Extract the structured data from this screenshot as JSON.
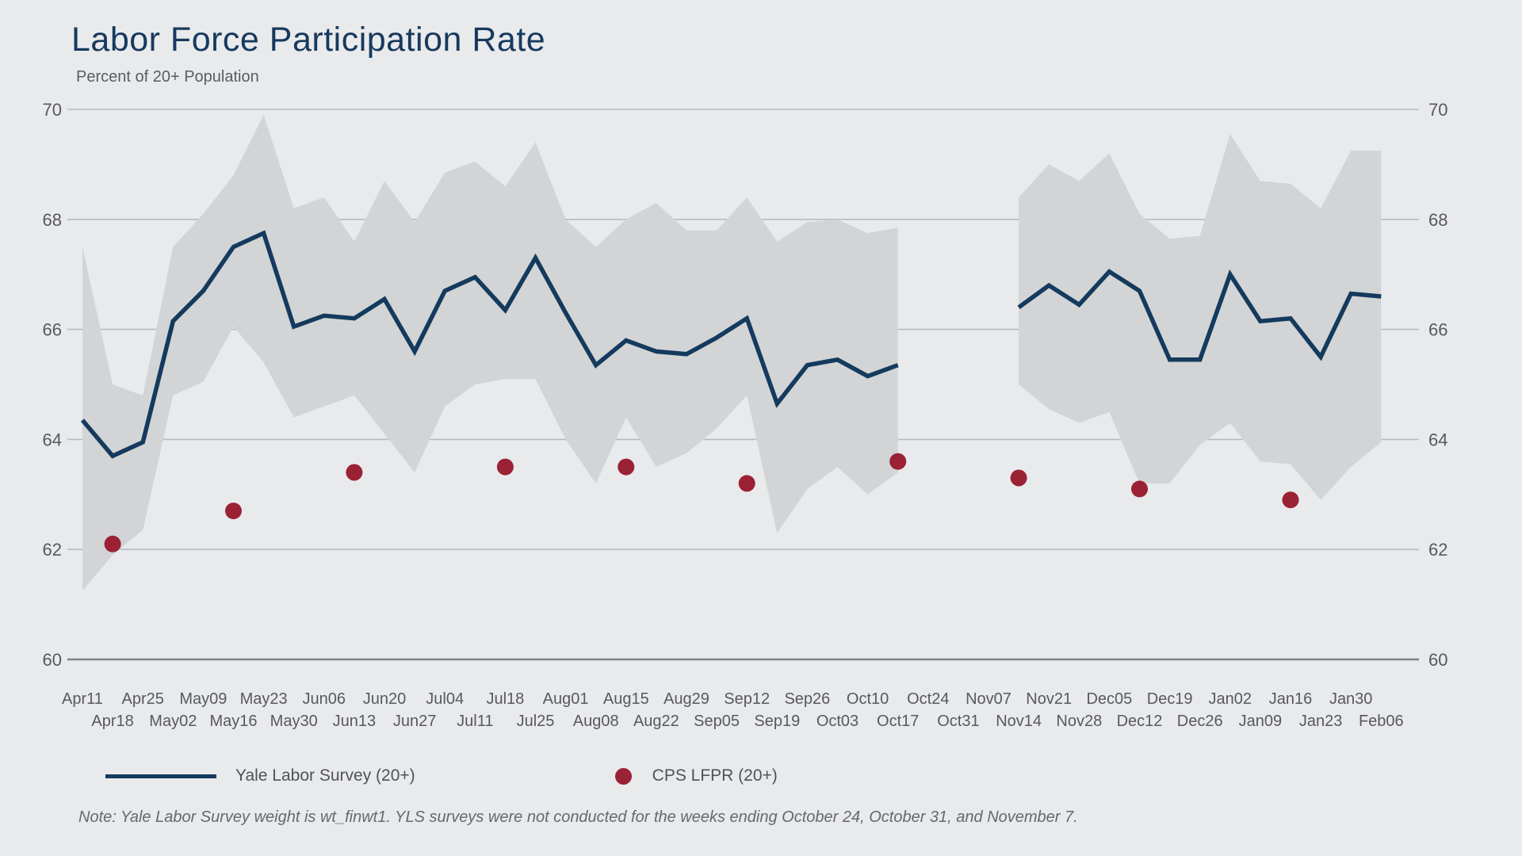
{
  "title": "Labor Force Participation Rate",
  "subtitle": "Percent of 20+ Population",
  "legend": {
    "series1_label": "Yale Labor Survey (20+)",
    "series2_label": "CPS LFPR (20+)"
  },
  "note": "Note: Yale Labor Survey weight is wt_finwt1. YLS surveys were not conducted for the weeks ending October 24, October 31, and November 7.",
  "colors": {
    "background": "#e9eaec",
    "line": "#143a5d",
    "band": "#d2d4d6",
    "dot": "#9b2135",
    "grid": "#b9babd",
    "axis": "#7e8184",
    "tick_text": "#58595b",
    "title_text": "#17395e"
  },
  "chart_data": {
    "type": "line",
    "title": "Labor Force Participation Rate",
    "ylabel": "Percent of 20+ Population",
    "ylim": [
      60,
      70
    ],
    "yticks": [
      60,
      62,
      64,
      66,
      68,
      70
    ],
    "grid": true,
    "legend_position": "bottom",
    "x_tick_labels": [
      "Apr11",
      "Apr18",
      "Apr25",
      "May02",
      "May09",
      "May16",
      "May23",
      "May30",
      "Jun06",
      "Jun13",
      "Jun20",
      "Jun27",
      "Jul04",
      "Jul11",
      "Jul18",
      "Jul25",
      "Aug01",
      "Aug08",
      "Aug15",
      "Aug22",
      "Aug29",
      "Sep05",
      "Sep12",
      "Sep19",
      "Sep26",
      "Oct03",
      "Oct10",
      "Oct17",
      "Oct24",
      "Oct31",
      "Nov07",
      "Nov14",
      "Nov21",
      "Nov28",
      "Dec05",
      "Dec12",
      "Dec19",
      "Dec26",
      "Jan02",
      "Jan09",
      "Jan16",
      "Jan23",
      "Jan30",
      "Feb06"
    ],
    "series": [
      {
        "name": "Yale Labor Survey (20+)",
        "type": "line",
        "values": [
          64.35,
          63.7,
          63.95,
          66.15,
          66.7,
          67.5,
          67.75,
          66.05,
          66.25,
          66.2,
          66.55,
          65.6,
          66.7,
          66.95,
          66.35,
          67.3,
          66.3,
          65.35,
          65.8,
          65.6,
          65.55,
          65.85,
          66.2,
          64.65,
          65.35,
          65.45,
          65.15,
          65.35,
          null,
          null,
          null,
          66.4,
          66.8,
          66.45,
          67.05,
          66.7,
          65.45,
          65.45,
          67.0,
          66.15,
          66.2,
          65.5,
          66.65,
          66.6
        ]
      },
      {
        "name": "YLS confidence band upper",
        "type": "band_upper",
        "values": [
          67.5,
          65.0,
          64.8,
          67.5,
          68.1,
          68.8,
          69.9,
          68.2,
          68.4,
          67.6,
          68.7,
          67.95,
          68.85,
          69.05,
          68.6,
          69.4,
          68.0,
          67.5,
          68.0,
          68.3,
          67.8,
          67.8,
          68.4,
          67.6,
          67.95,
          68.0,
          67.75,
          67.85,
          null,
          null,
          null,
          68.4,
          69.0,
          68.7,
          69.2,
          68.1,
          67.65,
          67.7,
          69.55,
          68.7,
          68.65,
          68.2,
          69.25,
          69.25
        ]
      },
      {
        "name": "YLS confidence band lower",
        "type": "band_lower",
        "values": [
          61.25,
          61.9,
          62.35,
          64.8,
          65.05,
          66.05,
          65.4,
          64.4,
          64.6,
          64.8,
          64.1,
          63.4,
          64.6,
          65.0,
          65.1,
          65.1,
          64.0,
          63.2,
          64.4,
          63.5,
          63.75,
          64.2,
          64.8,
          62.3,
          63.1,
          63.5,
          63.0,
          63.4,
          null,
          null,
          null,
          65.0,
          64.55,
          64.3,
          64.5,
          63.2,
          63.2,
          63.9,
          64.3,
          63.6,
          63.55,
          62.9,
          63.5,
          63.95
        ]
      },
      {
        "name": "CPS LFPR (20+)",
        "type": "scatter",
        "values": [
          null,
          62.1,
          null,
          null,
          null,
          62.7,
          null,
          null,
          null,
          63.4,
          null,
          null,
          null,
          null,
          63.5,
          null,
          null,
          null,
          63.5,
          null,
          null,
          null,
          63.2,
          null,
          null,
          null,
          null,
          63.6,
          null,
          null,
          null,
          63.3,
          null,
          null,
          null,
          63.1,
          null,
          null,
          null,
          null,
          62.9,
          null,
          null,
          null
        ]
      }
    ]
  }
}
